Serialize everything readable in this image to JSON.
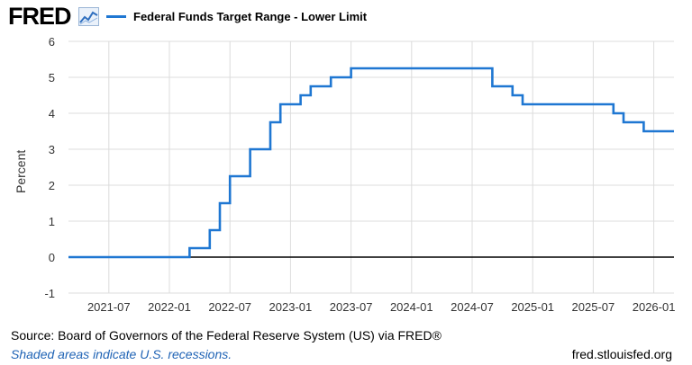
{
  "header": {
    "logo_text": "FRED",
    "logo_icon": "line-chart-icon"
  },
  "chart_data": {
    "type": "line",
    "title": "",
    "xlabel": "",
    "ylabel": "Percent",
    "ylim": [
      -1,
      6
    ],
    "yticks": [
      6,
      5,
      4,
      3,
      2,
      1,
      0,
      -1
    ],
    "xlim": [
      "2021-03",
      "2026-03"
    ],
    "xticks": [
      "2021-07",
      "2022-01",
      "2022-07",
      "2023-01",
      "2023-07",
      "2024-01",
      "2024-07",
      "2025-01",
      "2025-07",
      "2026-01"
    ],
    "grid": true,
    "legend_position": "top-left",
    "series": [
      {
        "name": "Federal Funds Target Range - Lower Limit",
        "color": "#1f77d2",
        "step": true,
        "points": [
          [
            "2021-03",
            0
          ],
          [
            "2022-03",
            0.25
          ],
          [
            "2022-05",
            0.75
          ],
          [
            "2022-06",
            1.5
          ],
          [
            "2022-07",
            2.25
          ],
          [
            "2022-09",
            3.0
          ],
          [
            "2022-11",
            3.75
          ],
          [
            "2022-12",
            4.25
          ],
          [
            "2023-02",
            4.5
          ],
          [
            "2023-03",
            4.75
          ],
          [
            "2023-05",
            5.0
          ],
          [
            "2023-07",
            5.25
          ],
          [
            "2024-09",
            4.75
          ],
          [
            "2024-11",
            4.5
          ],
          [
            "2024-12",
            4.25
          ],
          [
            "2025-09",
            4.0
          ],
          [
            "2025-10",
            3.75
          ],
          [
            "2025-12",
            3.5
          ],
          [
            "2026-03",
            3.5
          ]
        ]
      }
    ]
  },
  "footer": {
    "source": "Source: Board of Governors of the Federal Reserve System (US) via FRED®",
    "recession_note": "Shaded areas indicate U.S. recessions.",
    "site": "fred.stlouisfed.org"
  }
}
